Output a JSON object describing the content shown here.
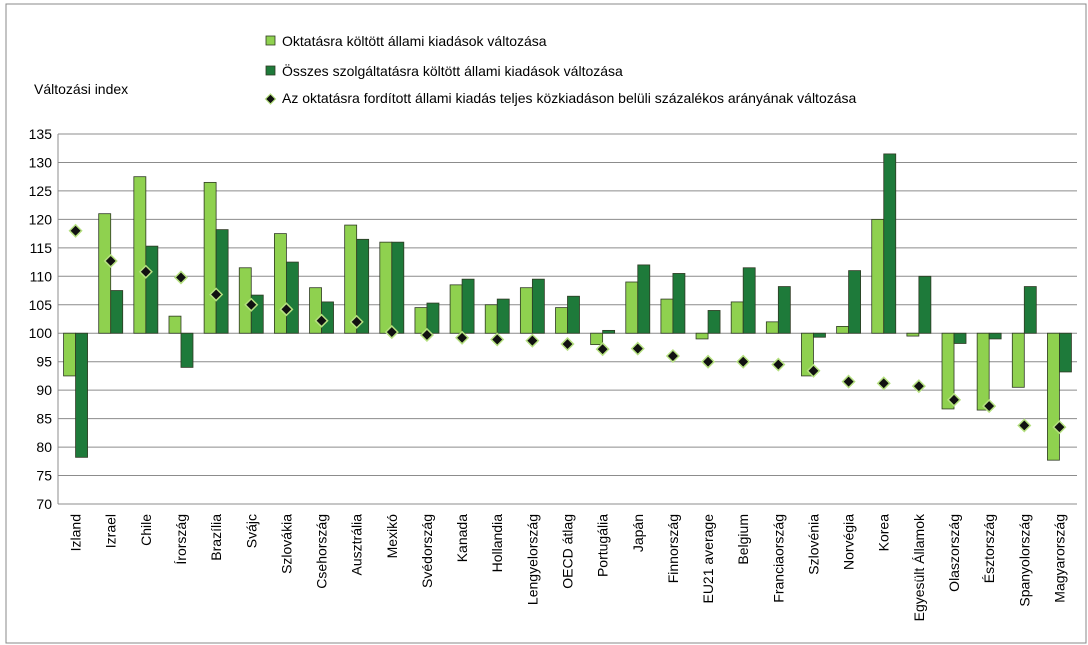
{
  "chart_data": {
    "type": "bar",
    "ylabel": "Változási index",
    "ylim": [
      70,
      135
    ],
    "yticks": [
      70,
      75,
      80,
      85,
      90,
      95,
      100,
      105,
      110,
      115,
      120,
      125,
      130,
      135
    ],
    "baseline": 100,
    "grid": true,
    "legend_position": "top",
    "categories": [
      "Izland",
      "Izrael",
      "Chile",
      "Írország",
      "Brazília",
      "Svájc",
      "Szlovákia",
      "Csehország",
      "Ausztrália",
      "Mexikó",
      "Svédország",
      "Kanada",
      "Hollandia",
      "Lengyelország",
      "OECD átlag",
      "Portugália",
      "Japán",
      "Finnország",
      "EU21 average",
      "Belgium",
      "Franciaország",
      "Szlovénia",
      "Norvégia",
      "Korea",
      "Egyesült Államok",
      "Olaszország",
      "Észtország",
      "Spanyolország",
      "Magyarország"
    ],
    "series": [
      {
        "name": "Oktatásra költött állami kiadások változása",
        "kind": "bar",
        "color": "#8fd14f",
        "values": [
          92.5,
          121,
          127.5,
          103,
          126.5,
          111.5,
          117.5,
          108,
          119,
          116,
          104.5,
          108.5,
          105,
          108,
          104.5,
          98,
          109,
          106,
          99,
          105.5,
          102,
          92.5,
          101.2,
          120,
          99.5,
          86.7,
          86.5,
          90.5,
          77.7
        ]
      },
      {
        "name": "Összes szolgáltatásra költött állami kiadások változása",
        "kind": "bar",
        "color": "#1e7a3a",
        "values": [
          78.2,
          107.5,
          115.3,
          94,
          118.2,
          106.7,
          112.5,
          105.5,
          116.5,
          116,
          105.3,
          109.5,
          106,
          109.5,
          106.5,
          100.5,
          112,
          110.5,
          104,
          111.5,
          108.2,
          99.3,
          111,
          131.5,
          110,
          98.2,
          99,
          108.2,
          93.2
        ]
      },
      {
        "name": "Az oktatásra fordított állami kiadás teljes közkiadáson belüli százalékos arányának változása",
        "kind": "marker",
        "color": "#111111",
        "values": [
          118,
          112.7,
          110.8,
          109.8,
          106.8,
          105,
          104.2,
          102.2,
          102,
          100.2,
          99.7,
          99.2,
          98.9,
          98.7,
          98.1,
          97.2,
          97.3,
          96,
          95,
          95,
          94.5,
          93.4,
          91.5,
          91.2,
          90.7,
          88.3,
          87.2,
          83.8,
          83.5
        ]
      }
    ]
  }
}
